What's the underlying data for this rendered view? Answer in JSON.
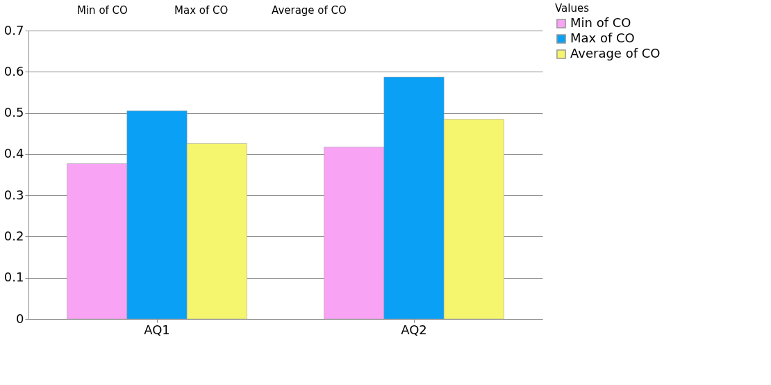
{
  "chart_data": {
    "type": "bar",
    "categories": [
      "AQ1",
      "AQ2"
    ],
    "series": [
      {
        "name": "Min of CO",
        "color": "#f9a3f5",
        "values": [
          0.377,
          0.417
        ]
      },
      {
        "name": "Max of CO",
        "color": "#0aa0f5",
        "values": [
          0.505,
          0.587
        ]
      },
      {
        "name": "Average of CO",
        "color": "#f5f56e",
        "values": [
          0.426,
          0.485
        ]
      }
    ],
    "ylim": [
      0,
      0.7
    ],
    "yticks": [
      0,
      0.1,
      0.2,
      0.3,
      0.4,
      0.5,
      0.6,
      0.7
    ],
    "grid": "y",
    "legend": "right",
    "legend_title": "Values",
    "annotations": [
      "Min of CO",
      "Max of CO",
      "Average of CO"
    ]
  }
}
